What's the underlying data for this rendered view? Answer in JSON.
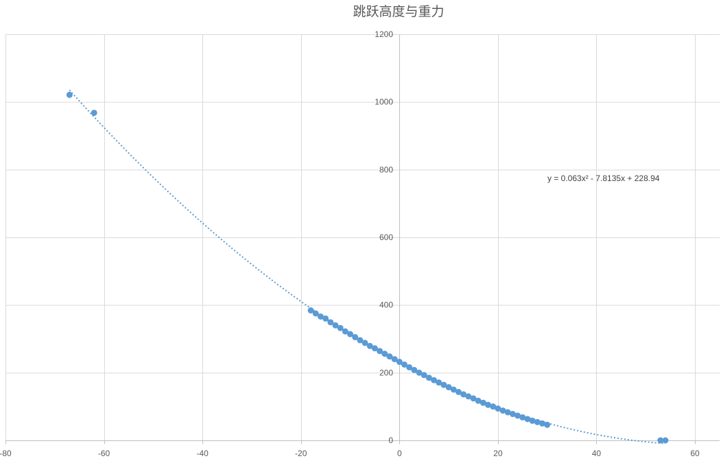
{
  "chart_data": {
    "type": "scatter",
    "title": "跳跃高度与重力",
    "xlabel": "",
    "ylabel": "",
    "xlim": [
      -80,
      60
    ],
    "ylim": [
      0,
      1200
    ],
    "x_ticks": [
      -80,
      -60,
      -40,
      -20,
      0,
      20,
      40,
      60
    ],
    "y_ticks": [
      0,
      200,
      400,
      600,
      800,
      1000,
      1200
    ],
    "grid": true,
    "legend": "none",
    "marker_color": "#5b9bd5",
    "series": [
      {
        "x": [
          -67,
          -62,
          -18,
          -17,
          -16,
          -15,
          -14,
          -13,
          -12,
          -11,
          -10,
          -9,
          -8,
          -7,
          -6,
          -5,
          -4,
          -3,
          -2,
          -1,
          0,
          1,
          2,
          3,
          4,
          5,
          6,
          7,
          8,
          9,
          10,
          11,
          12,
          13,
          14,
          15,
          16,
          17,
          18,
          19,
          20,
          21,
          22,
          23,
          24,
          25,
          26,
          27,
          28,
          29,
          30,
          53,
          54
        ],
        "y": [
          1021,
          968,
          384,
          375,
          366,
          360,
          349,
          340,
          332,
          322,
          314,
          305,
          296,
          288,
          279,
          272,
          264,
          256,
          248,
          240,
          232,
          224,
          216,
          208,
          200,
          193,
          185,
          178,
          171,
          164,
          157,
          150,
          143,
          136,
          130,
          124,
          117,
          111,
          105,
          100,
          94,
          88,
          83,
          78,
          73,
          68,
          63,
          58,
          54,
          50,
          46,
          0,
          0
        ]
      }
    ],
    "trendline": {
      "type": "polynomial",
      "a": 0.063,
      "b": -7.8135,
      "c": 228.94,
      "x_range": [
        -67,
        54
      ],
      "equation": "y = 0.063x² - 7.8135x + 228.94"
    }
  }
}
